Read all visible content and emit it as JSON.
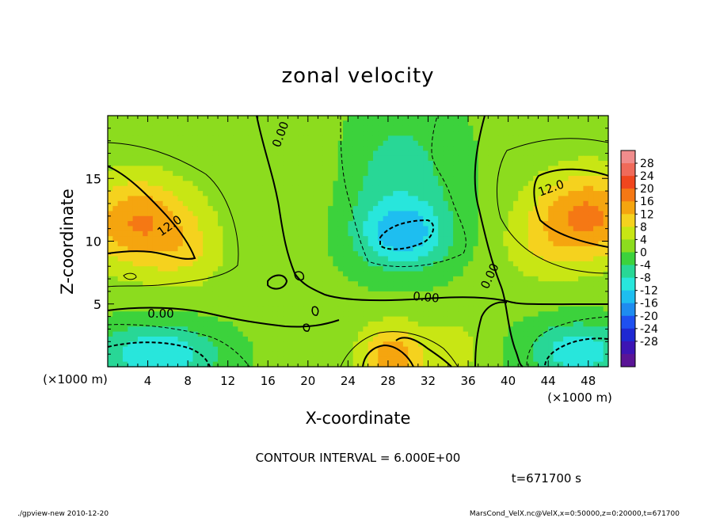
{
  "chart_data": {
    "type": "heatmap",
    "title": "zonal velocity",
    "xlabel": "X-coordinate",
    "ylabel": "Z-coordinate",
    "x_scale_label": "(×1000 m)",
    "x_scale_label_right": "(×1000 m)",
    "xlim": [
      0,
      50
    ],
    "ylim": [
      0,
      20
    ],
    "x_ticks": [
      4,
      8,
      12,
      16,
      20,
      24,
      28,
      32,
      36,
      40,
      44,
      48
    ],
    "y_ticks": [
      5,
      10,
      15
    ],
    "colorbar_ticks": [
      28,
      24,
      20,
      16,
      12,
      8,
      4,
      0,
      -4,
      -8,
      -12,
      -16,
      -20,
      -24,
      -28
    ],
    "colorbar_levels": [
      32,
      28,
      24,
      20,
      16,
      12,
      8,
      4,
      0,
      -4,
      -8,
      -12,
      -16,
      -20,
      -24,
      -28,
      -32
    ],
    "colorbar_colors": [
      "#f08c8c",
      "#f06a5a",
      "#f0461e",
      "#f57814",
      "#f5a50f",
      "#f5d21e",
      "#c8e614",
      "#8cdc1e",
      "#3cd23c",
      "#28d796",
      "#28e6dc",
      "#1ebef0",
      "#1e8cf0",
      "#1e50f0",
      "#1e28d2",
      "#3c14b4",
      "#5a1496"
    ],
    "contour_interval_text": "CONTOUR INTERVAL = 6.000E+00",
    "time_text": "t=671700 s",
    "contour_labels": [
      {
        "text": "0.00",
        "x": 17.3,
        "y": 18.5,
        "angle": 70
      },
      {
        "text": "12.0",
        "x": 6.2,
        "y": 11.2,
        "angle": 35
      },
      {
        "text": "0.00",
        "x": 5.3,
        "y": 4.2,
        "angle": 0
      },
      {
        "text": "0.00",
        "x": 31.8,
        "y": 5.5,
        "angle": -5
      },
      {
        "text": "0.00",
        "x": 38.2,
        "y": 7.2,
        "angle": 65
      },
      {
        "text": "12.0",
        "x": 44.3,
        "y": 14.2,
        "angle": 20
      }
    ],
    "blobs": [
      {
        "x": 3,
        "y": 11.5,
        "sx": 5.5,
        "sy": 3.6,
        "v": 15
      },
      {
        "x": 8,
        "y": 9,
        "sx": 4,
        "sy": 3,
        "v": 5
      },
      {
        "x": 48,
        "y": 12,
        "sx": 5.5,
        "sy": 3.6,
        "v": 16
      },
      {
        "x": 43,
        "y": 9.5,
        "sx": 4,
        "sy": 3,
        "v": 4
      },
      {
        "x": 29.5,
        "y": 10.5,
        "sx": 4.5,
        "sy": 2.6,
        "v": -13
      },
      {
        "x": 29,
        "y": 15,
        "sx": 6,
        "sy": 6,
        "v": -7
      },
      {
        "x": 5,
        "y": 1,
        "sx": 6,
        "sy": 2.4,
        "v": -13
      },
      {
        "x": 47,
        "y": 1.2,
        "sx": 5,
        "sy": 2.4,
        "v": -12
      },
      {
        "x": 28.5,
        "y": 0.8,
        "sx": 3.2,
        "sy": 2.6,
        "v": 14
      },
      {
        "x": 34.5,
        "y": 1.5,
        "sx": 2.5,
        "sy": 2.2,
        "v": 6
      },
      {
        "x": 20,
        "y": 16,
        "sx": 5,
        "sy": 6,
        "v": 2
      }
    ],
    "base_value": 1
  },
  "footer": {
    "left": "./gpview-new  2010-12-20",
    "right": "MarsCond_VelX.nc@VelX,x=0:50000,z=0:20000,t=671700"
  }
}
